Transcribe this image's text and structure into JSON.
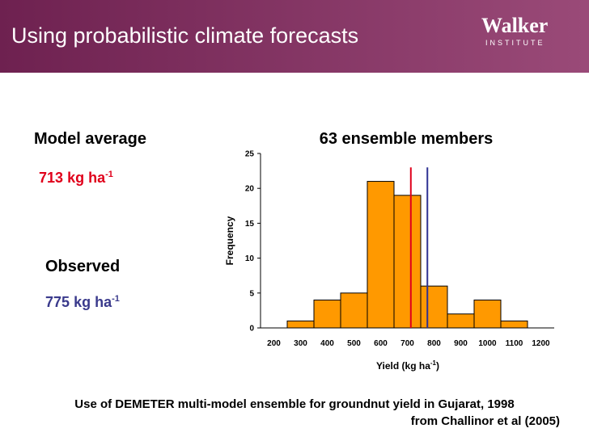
{
  "slide_title": "Using probabilistic climate forecasts",
  "logo": {
    "name": "Walker",
    "sub": "INSTITUTE"
  },
  "model_average": {
    "label": "Model average",
    "value": 713,
    "unit": "kg ha",
    "exponent": "-1",
    "color": "#e0001b"
  },
  "observed": {
    "label": "Observed",
    "value": 775,
    "unit": "kg ha",
    "exponent": "-1",
    "color": "#2e3192"
  },
  "chart_data": {
    "type": "histogram",
    "title": "63 ensemble members",
    "y_label": "Frequency",
    "x_label": {
      "text": "Yield (kg ha",
      "exponent": "-1",
      "close": ")"
    },
    "bins": [
      250,
      350,
      450,
      550,
      650,
      750,
      850,
      950,
      1050,
      1150
    ],
    "counts": [
      1,
      4,
      5,
      21,
      19,
      6,
      2,
      4,
      1
    ],
    "color": "#ff9900",
    "xlim": [
      150,
      1250
    ],
    "xticks": [
      200,
      300,
      400,
      500,
      600,
      700,
      800,
      900,
      1000,
      1100,
      1200
    ],
    "ylim": [
      0,
      25
    ],
    "yticks": [
      0,
      5,
      10,
      15,
      20,
      25
    ]
  },
  "footer": {
    "line1": "Use of DEMETER multi-model ensemble for groundnut yield in Gujarat, 1998",
    "line2": "from Challinor et al (2005)"
  }
}
